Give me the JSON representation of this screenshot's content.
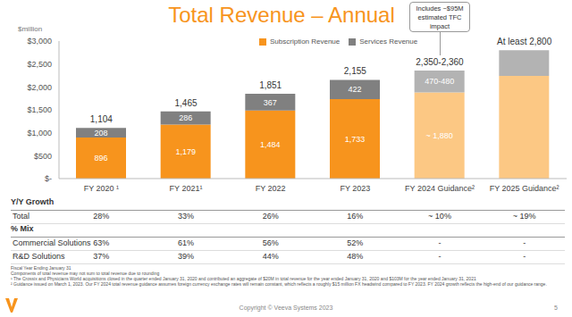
{
  "chart_data": {
    "type": "bar",
    "stacked": true,
    "data_labels": true,
    "grid": false,
    "title": "Total Revenue – Annual",
    "ylabel": "$million",
    "categories": [
      "FY 2020 ¹",
      "FY 2021¹",
      "FY 2022",
      "FY 2023",
      "FY 2024 Guidance²",
      "FY 2025 Guidance²"
    ],
    "series": [
      {
        "name": "Subscription Revenue",
        "color": "#F7941D",
        "colors": [
          "#F7941D",
          "#F7941D",
          "#F7941D",
          "#F7941D",
          "#FCC884",
          "#FCC884"
        ],
        "values": [
          896,
          1179,
          1484,
          1733,
          1880,
          2240
        ],
        "value_labels": [
          "896",
          "1,179",
          "1,484",
          "1,733",
          "~ 1,880",
          null
        ]
      },
      {
        "name": "Services Revenue",
        "color": "#808080",
        "colors": [
          "#808080",
          "#808080",
          "#808080",
          "#808080",
          "#B3B3B3",
          "#B3B3B3"
        ],
        "values": [
          208,
          286,
          367,
          422,
          475,
          560
        ],
        "value_labels": [
          "208",
          "286",
          "367",
          "422",
          "470-480",
          null
        ]
      }
    ],
    "totals": {
      "values": [
        1104,
        1465,
        1851,
        2155,
        2355,
        2800
      ],
      "labels": [
        "1,104",
        "1,465",
        "1,851",
        "2,155",
        "2,350-2,360",
        "At least 2,800"
      ]
    },
    "annotations": [
      {
        "text": "Includes ~$95M estimated TFC impact",
        "category": "FY 2024 Guidance²"
      }
    ],
    "ylim": [
      0,
      3000
    ],
    "yticks": [
      {
        "value": 0,
        "label": "$-"
      },
      {
        "value": 500,
        "label": "$500"
      },
      {
        "value": 1000,
        "label": "$1,000"
      },
      {
        "value": 1500,
        "label": "$1,500"
      },
      {
        "value": 2000,
        "label": "$2,000"
      },
      {
        "value": 2500,
        "label": "$2,500"
      },
      {
        "value": 3000,
        "label": "$3,000"
      }
    ],
    "legend": "top"
  },
  "table": {
    "sections": [
      {
        "title": "Y/Y Growth",
        "rows": [
          {
            "label": "Total",
            "cells": [
              "28%",
              "33%",
              "26%",
              "16%",
              "~ 10%",
              "~ 19%"
            ]
          }
        ]
      },
      {
        "title": "% Mix",
        "rows": [
          {
            "label": "Commercial Solutions",
            "cells": [
              "63%",
              "61%",
              "56%",
              "52%",
              "-",
              "-"
            ]
          },
          {
            "label": "R&D Solutions",
            "cells": [
              "37%",
              "39%",
              "44%",
              "48%",
              "-",
              "-"
            ]
          }
        ]
      }
    ]
  },
  "footnotes": [
    "Fiscal Year Ending January 31",
    "Components of total revenue may not sum to total revenue due to rounding",
    "¹ The Crossix and Physicians World acquisitions closed in the quarter ended January 31, 2020 and contributed an aggregate of $20M in total revenue for the year ended January 31, 2020 and $103M for the year ended January 31, 2021",
    "² Guidance issued on March 1, 2023. Our FY 2024 total revenue guidance assumes foreign currency exchange rates will remain constant, which reflects a roughly $15 million FX headwind compared to FY 2023. FY 2024 growth reflects the high-end of our guidance range."
  ],
  "footer": {
    "copyright": "Copyright © Veeva Systems 2023",
    "page": "5"
  }
}
